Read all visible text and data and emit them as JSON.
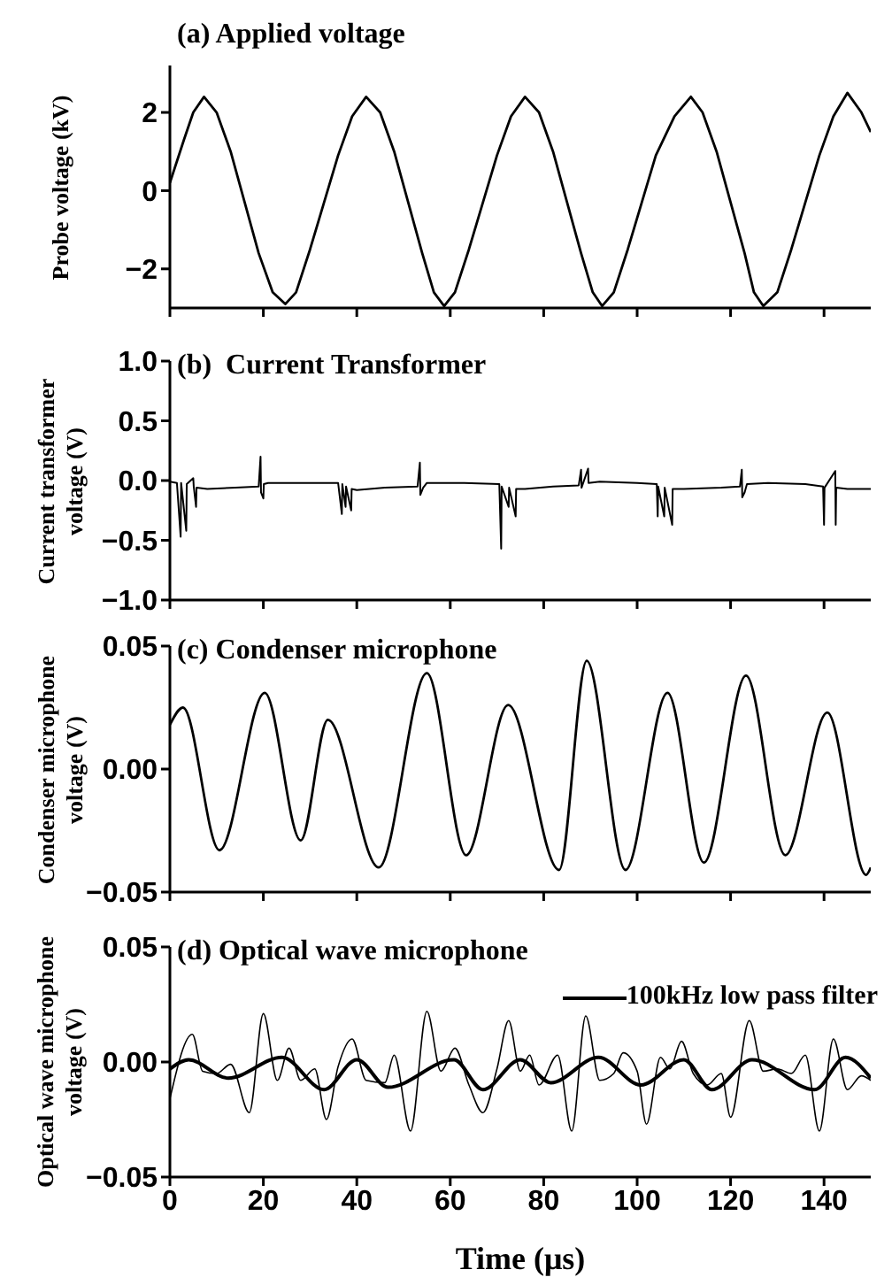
{
  "chart_data": [
    {
      "type": "line",
      "title": "(a) Applied voltage",
      "ylabel": "Probe voltage (kV)",
      "xlim": [
        0,
        150
      ],
      "xticks": [
        0,
        20,
        40,
        60,
        80,
        100,
        120,
        140
      ],
      "ylim": [
        -3,
        3.2
      ],
      "yticks": [
        {
          "value": -2,
          "label": "−2"
        },
        0,
        2
      ],
      "tick_labels": "y",
      "x": [
        0,
        3,
        5,
        7.3,
        10,
        13,
        16,
        19,
        22,
        24.7,
        27,
        30,
        33,
        36,
        39,
        42,
        45,
        48,
        51,
        54,
        56.5,
        58.7,
        61,
        64,
        67,
        70,
        73,
        76,
        79,
        82,
        85,
        88,
        90.5,
        92.5,
        95,
        98,
        101,
        104,
        108,
        111.5,
        114,
        117,
        120,
        123,
        125,
        127,
        130,
        133,
        136,
        139,
        142,
        145,
        148,
        150
      ],
      "series": [
        {
          "color": "#000000",
          "values": [
            0.2,
            1.3,
            2.0,
            2.4,
            2.0,
            1.0,
            -0.3,
            -1.6,
            -2.6,
            -2.9,
            -2.6,
            -1.5,
            -0.3,
            0.9,
            1.9,
            2.4,
            2.0,
            1.0,
            -0.3,
            -1.6,
            -2.6,
            -2.95,
            -2.6,
            -1.5,
            -0.3,
            0.9,
            1.9,
            2.4,
            2.0,
            1.0,
            -0.3,
            -1.6,
            -2.6,
            -2.95,
            -2.6,
            -1.5,
            -0.3,
            0.9,
            1.9,
            2.4,
            2.0,
            1.0,
            -0.3,
            -1.6,
            -2.6,
            -2.95,
            -2.6,
            -1.5,
            -0.3,
            0.9,
            1.9,
            2.5,
            2.0,
            1.5
          ]
        }
      ]
    },
    {
      "type": "line",
      "title": "(b)  Current Transformer",
      "ylabel": "Current transformer voltage (V)",
      "xlim": [
        0,
        150
      ],
      "xticks": [
        0,
        20,
        40,
        60,
        80,
        100,
        120,
        140
      ],
      "ylim": [
        -1,
        1
      ],
      "yticks": [
        {
          "value": -1,
          "label": "−1.0"
        },
        {
          "value": -0.5,
          "label": "−0.5"
        },
        {
          "value": 0,
          "label": "0.0"
        },
        {
          "value": 0.5,
          "label": "0.5"
        },
        {
          "value": 1,
          "label": "1.0"
        }
      ],
      "tick_labels": "y",
      "x": [
        0,
        1.5,
        2.3,
        2.4,
        3.5,
        3.6,
        5,
        5.1,
        5.6,
        5.7,
        8,
        14,
        19,
        19.4,
        19.5,
        20,
        20.1,
        21,
        28,
        36,
        36.8,
        36.9,
        37.6,
        37.7,
        38.8,
        38.9,
        40,
        46,
        53,
        53.5,
        53.6,
        54.2,
        55,
        63,
        70.5,
        70.9,
        71,
        72.5,
        72.6,
        74,
        74.1,
        76,
        82,
        87.5,
        88,
        88.1,
        89.5,
        89.6,
        92,
        100,
        104.2,
        104.4,
        104.5,
        105.8,
        105.9,
        107.5,
        107.6,
        110,
        118,
        122,
        122.4,
        122.5,
        123,
        123.5,
        128,
        136,
        139.8,
        140,
        140.1,
        142.4,
        142.5,
        142.6,
        145,
        150
      ],
      "series": [
        {
          "color": "#000000",
          "values": [
            -0.01,
            -0.02,
            -0.47,
            -0.02,
            -0.42,
            -0.03,
            0.02,
            -0.05,
            -0.22,
            -0.06,
            -0.07,
            -0.06,
            -0.05,
            0.2,
            -0.1,
            -0.15,
            -0.03,
            -0.02,
            -0.02,
            -0.02,
            -0.28,
            -0.03,
            -0.22,
            -0.05,
            -0.25,
            -0.07,
            -0.08,
            -0.06,
            -0.05,
            0.15,
            -0.12,
            -0.06,
            -0.02,
            -0.02,
            -0.03,
            -0.57,
            -0.05,
            -0.22,
            -0.06,
            -0.3,
            -0.07,
            -0.07,
            -0.05,
            -0.04,
            0.09,
            -0.06,
            0.1,
            -0.02,
            -0.01,
            -0.02,
            -0.03,
            -0.3,
            -0.05,
            -0.3,
            -0.06,
            -0.37,
            -0.07,
            -0.07,
            -0.06,
            -0.05,
            0.09,
            -0.14,
            -0.1,
            -0.03,
            -0.02,
            -0.03,
            -0.05,
            -0.37,
            -0.06,
            0.08,
            -0.37,
            -0.06,
            -0.07,
            -0.07
          ]
        }
      ]
    },
    {
      "type": "line",
      "title": "(c) Condenser microphone",
      "ylabel": "Condenser microphone voltage (V)",
      "xlim": [
        0,
        150
      ],
      "xticks": [
        0,
        20,
        40,
        60,
        80,
        100,
        120,
        140
      ],
      "ylim": [
        -0.05,
        0.05
      ],
      "yticks": [
        {
          "value": -0.05,
          "label": "−0.05"
        },
        {
          "value": 0,
          "label": "0.00"
        },
        0.05
      ],
      "tick_labels": "y",
      "x": [
        0,
        2.8,
        10.6,
        20.3,
        28,
        33.8,
        44.7,
        55,
        63.4,
        72.4,
        83.3,
        89.2,
        97.5,
        106.5,
        114.3,
        123.3,
        131.7,
        140.7,
        149,
        150
      ],
      "series": [
        {
          "color": "#000000",
          "values": [
            0.018,
            0.025,
            -0.033,
            0.031,
            -0.029,
            0.02,
            -0.04,
            0.039,
            -0.035,
            0.026,
            -0.041,
            0.044,
            -0.041,
            0.031,
            -0.038,
            0.038,
            -0.035,
            0.023,
            -0.043,
            -0.04
          ]
        }
      ]
    },
    {
      "type": "line",
      "title": "(d) Optical wave microphone",
      "ylabel": "Optical wave microphone voltage (V)",
      "xlabel": "Time (μs)",
      "xlim": [
        0,
        150
      ],
      "xticks": [
        0,
        20,
        40,
        60,
        80,
        100,
        120,
        140
      ],
      "ylim": [
        -0.05,
        0.05
      ],
      "yticks": [
        {
          "value": -0.05,
          "label": "−0.05"
        },
        {
          "value": 0,
          "label": "0.00"
        },
        0.05
      ],
      "legend": "top right",
      "series": [
        {
          "color": "#000000",
          "x": [
            0,
            4.8,
            7,
            10,
            13,
            17,
            20,
            23,
            25.5,
            28,
            31,
            33.5,
            36,
            39,
            42,
            46,
            48,
            51.5,
            55,
            58,
            61,
            64,
            67,
            70,
            72.5,
            75,
            77,
            79,
            83,
            86,
            89,
            92,
            95,
            97,
            100,
            102,
            105,
            107,
            109.5,
            112,
            115,
            118,
            120,
            124,
            127,
            130,
            133,
            136,
            139,
            142,
            145,
            148,
            150
          ],
          "values": [
            -0.016,
            0.012,
            -0.004,
            -0.005,
            -0.001,
            -0.022,
            0.021,
            -0.008,
            0.006,
            -0.008,
            -0.003,
            -0.025,
            -0.002,
            0.01,
            -0.008,
            -0.009,
            0.003,
            -0.03,
            0.022,
            -0.004,
            0.006,
            -0.01,
            -0.022,
            -0.003,
            0.018,
            -0.004,
            0.003,
            -0.01,
            0.003,
            -0.03,
            0.02,
            -0.008,
            -0.005,
            0.004,
            -0.004,
            -0.027,
            0.002,
            -0.003,
            0.009,
            -0.005,
            -0.01,
            -0.005,
            -0.024,
            0.018,
            -0.004,
            -0.003,
            -0.005,
            0.003,
            -0.03,
            0.01,
            -0.012,
            -0.006,
            -0.008
          ]
        },
        {
          "name": "100kHz low pass filter",
          "color": "#000000",
          "x": [
            0,
            4,
            12.5,
            24,
            33,
            40,
            46.7,
            60.8,
            67,
            75,
            81.5,
            91.7,
            100.8,
            110,
            116,
            124.6,
            138,
            144.6,
            150
          ],
          "values": [
            -0.003,
            0.001,
            -0.007,
            0.002,
            -0.012,
            0.001,
            -0.011,
            0.001,
            -0.012,
            0.001,
            -0.009,
            0.002,
            -0.01,
            0.001,
            -0.012,
            0.001,
            -0.012,
            0.002,
            -0.007
          ]
        }
      ]
    }
  ]
}
